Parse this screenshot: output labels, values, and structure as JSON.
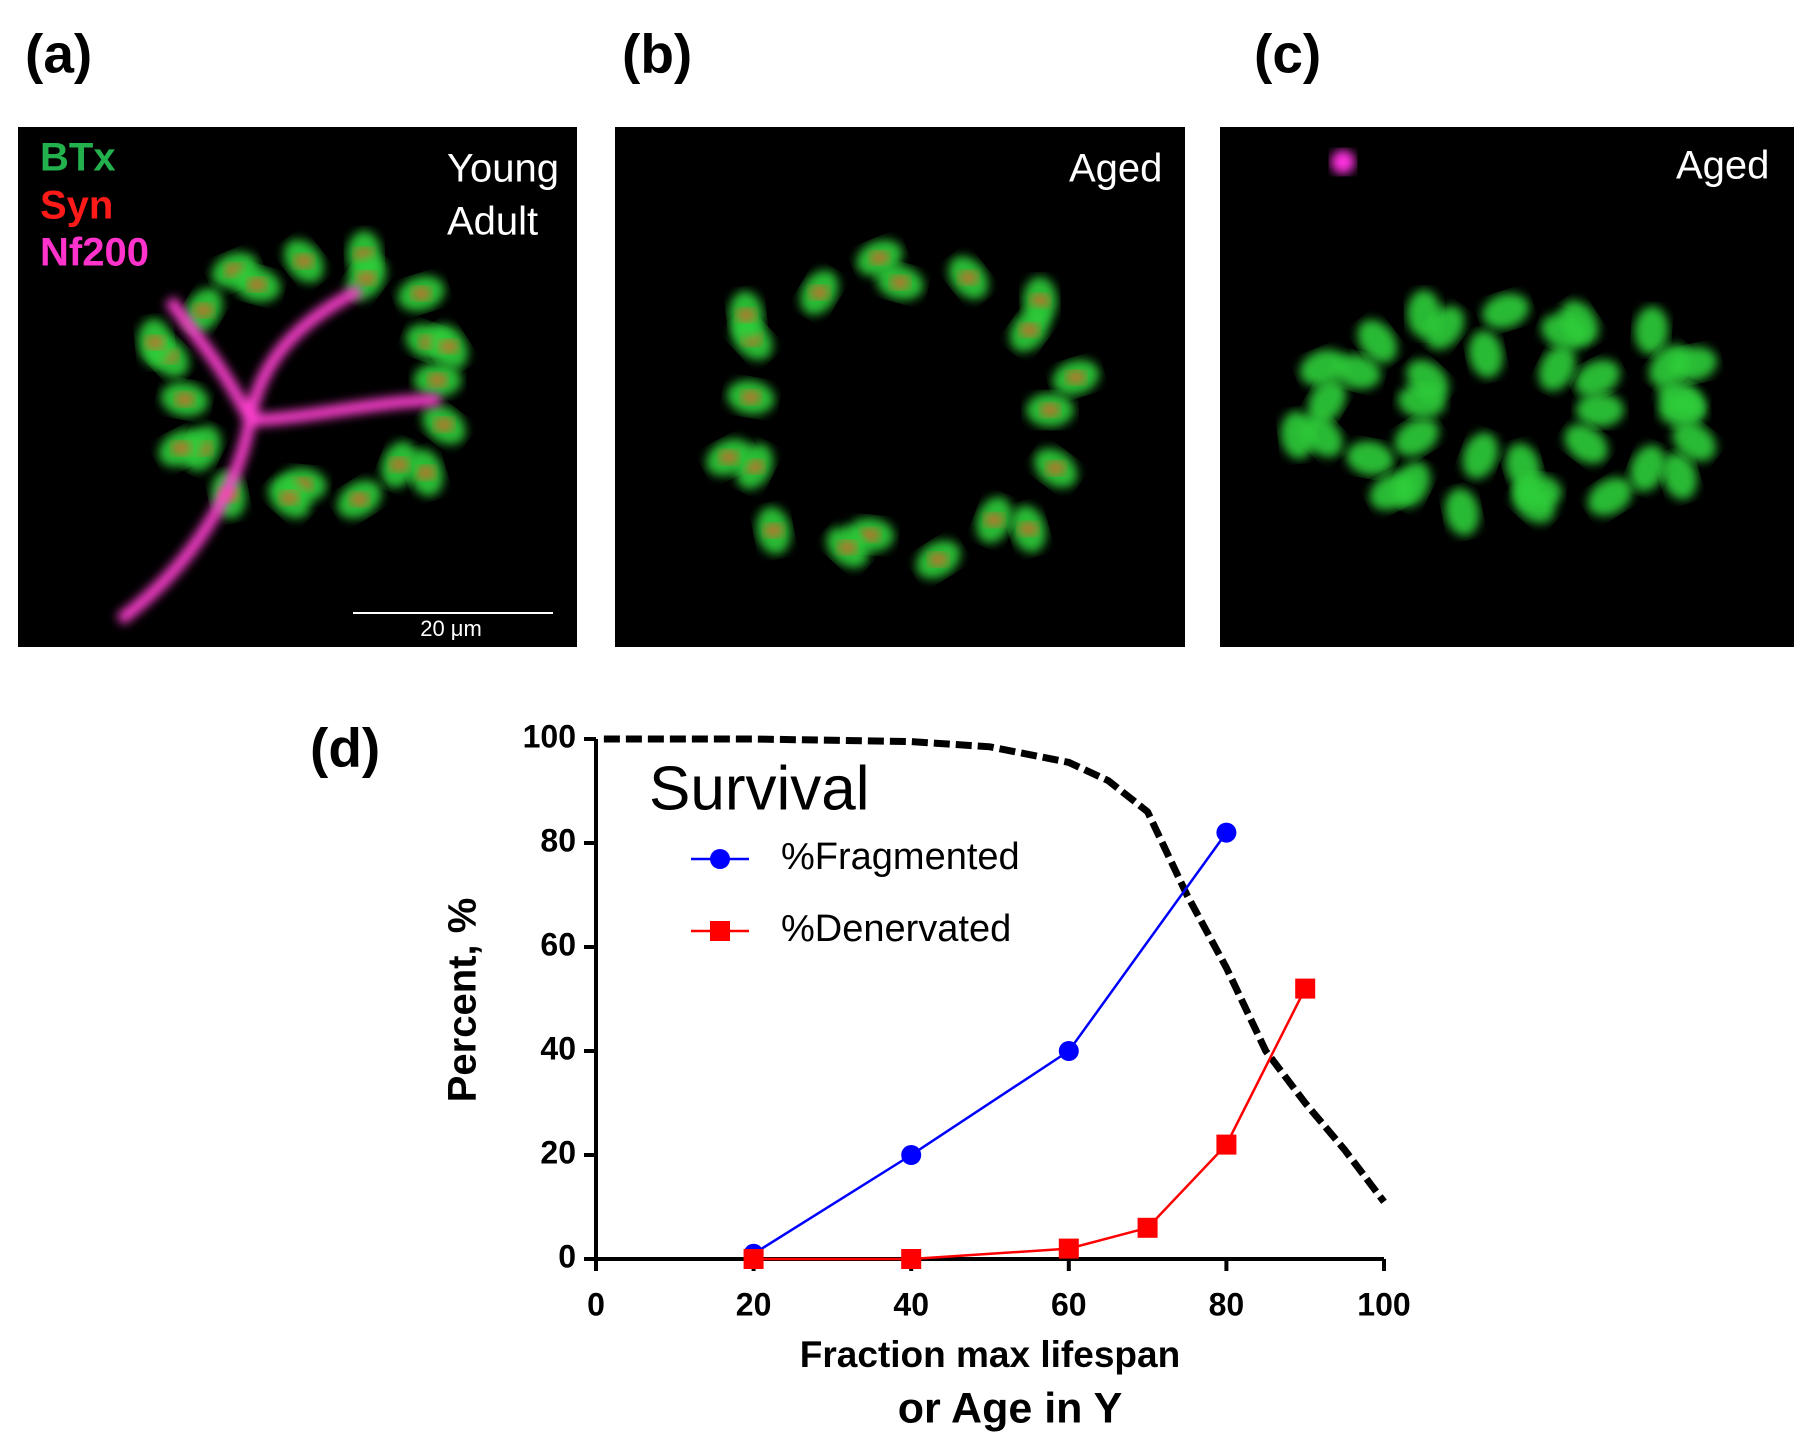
{
  "panels": {
    "a": {
      "label": "(a)",
      "stains": [
        "BTx",
        "Syn",
        "Nf200"
      ],
      "condition": [
        "Young",
        "Adult"
      ],
      "scale_bar": "20 μm"
    },
    "b": {
      "label": "(b)",
      "condition": "Aged"
    },
    "c": {
      "label": "(c)",
      "condition": "Aged"
    },
    "d": {
      "label": "(d)"
    }
  },
  "chart_data": {
    "type": "line",
    "xlabel": [
      "Fraction max lifespan",
      "or Age in Y"
    ],
    "ylabel": "Percent, %",
    "xlim": [
      0,
      100
    ],
    "xticks": [
      0,
      20,
      40,
      60,
      80,
      100
    ],
    "ylim": [
      0,
      100
    ],
    "yticks": [
      0,
      20,
      40,
      60,
      80,
      100
    ],
    "series": [
      {
        "name": "Survival",
        "color": "#000000",
        "style": "dashed",
        "marker": null,
        "x": [
          1,
          20,
          40,
          50,
          60,
          65,
          70,
          75,
          80,
          85,
          90,
          95,
          100
        ],
        "values": [
          100,
          100,
          99.5,
          98.5,
          95.5,
          92,
          86,
          70,
          56,
          40,
          30,
          21,
          11
        ]
      },
      {
        "name": "%Fragmented",
        "color": "#0000ff",
        "style": "solid",
        "marker": "circle",
        "x": [
          20,
          40,
          60,
          80
        ],
        "values": [
          1,
          20,
          40,
          82
        ]
      },
      {
        "name": "%Denervated",
        "color": "#ff0000",
        "style": "solid",
        "marker": "square",
        "x": [
          20,
          40,
          60,
          70,
          80,
          90
        ],
        "values": [
          0,
          0,
          2,
          6,
          22,
          52
        ]
      }
    ]
  }
}
